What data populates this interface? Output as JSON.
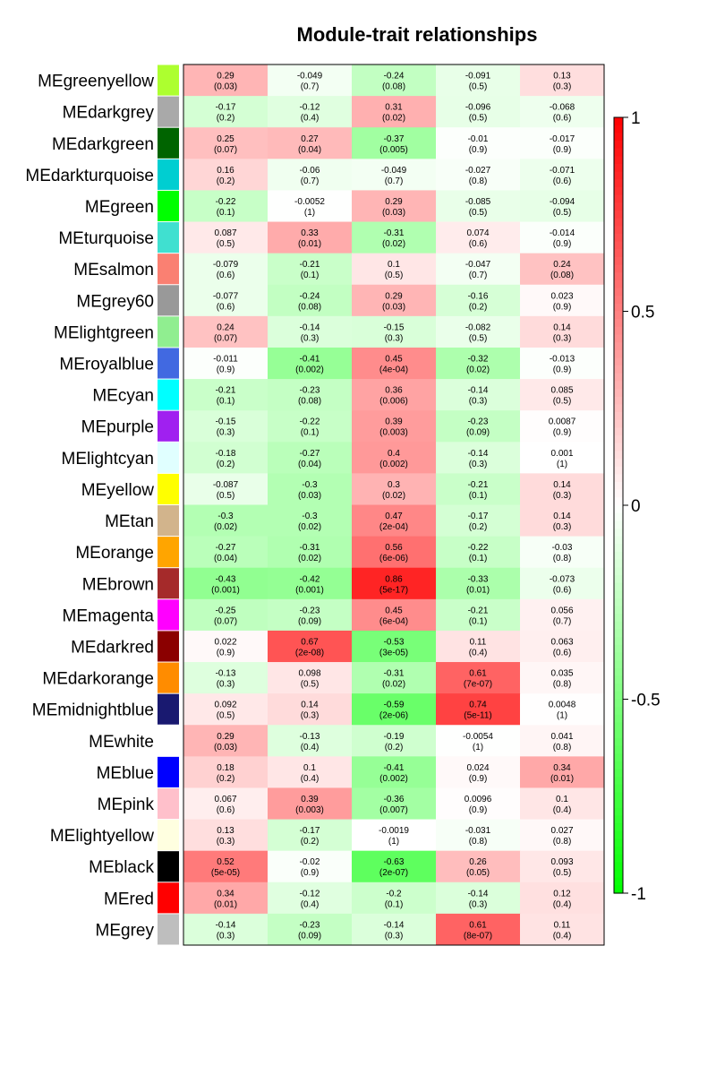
{
  "chart_data": {
    "type": "heatmap",
    "title": "Module-trait relationships",
    "xlabel": "",
    "ylabel": "",
    "rows": [
      {
        "label": "MEgreenyellow",
        "color": "#ADFF2F",
        "cells": [
          [
            "0.29",
            "(0.03)"
          ],
          [
            "-0.049",
            "(0.7)"
          ],
          [
            "-0.24",
            "(0.08)"
          ],
          [
            "-0.091",
            "(0.5)"
          ],
          [
            "0.13",
            "(0.3)"
          ]
        ]
      },
      {
        "label": "MEdarkgrey",
        "color": "#A9A9A9",
        "cells": [
          [
            "-0.17",
            "(0.2)"
          ],
          [
            "-0.12",
            "(0.4)"
          ],
          [
            "0.31",
            "(0.02)"
          ],
          [
            "-0.096",
            "(0.5)"
          ],
          [
            "-0.068",
            "(0.6)"
          ]
        ]
      },
      {
        "label": "MEdarkgreen",
        "color": "#006400",
        "cells": [
          [
            "0.25",
            "(0.07)"
          ],
          [
            "0.27",
            "(0.04)"
          ],
          [
            "-0.37",
            "(0.005)"
          ],
          [
            "-0.01",
            "(0.9)"
          ],
          [
            "-0.017",
            "(0.9)"
          ]
        ]
      },
      {
        "label": "MEdarkturquoise",
        "color": "#00CED1",
        "cells": [
          [
            "0.16",
            "(0.2)"
          ],
          [
            "-0.06",
            "(0.7)"
          ],
          [
            "-0.049",
            "(0.7)"
          ],
          [
            "-0.027",
            "(0.8)"
          ],
          [
            "-0.071",
            "(0.6)"
          ]
        ]
      },
      {
        "label": "MEgreen",
        "color": "#00FF00",
        "cells": [
          [
            "-0.22",
            "(0.1)"
          ],
          [
            "-0.0052",
            "(1)"
          ],
          [
            "0.29",
            "(0.03)"
          ],
          [
            "-0.085",
            "(0.5)"
          ],
          [
            "-0.094",
            "(0.5)"
          ]
        ]
      },
      {
        "label": "MEturquoise",
        "color": "#40E0D0",
        "cells": [
          [
            "0.087",
            "(0.5)"
          ],
          [
            "0.33",
            "(0.01)"
          ],
          [
            "-0.31",
            "(0.02)"
          ],
          [
            "0.074",
            "(0.6)"
          ],
          [
            "-0.014",
            "(0.9)"
          ]
        ]
      },
      {
        "label": "MEsalmon",
        "color": "#FA8072",
        "cells": [
          [
            "-0.079",
            "(0.6)"
          ],
          [
            "-0.21",
            "(0.1)"
          ],
          [
            "0.1",
            "(0.5)"
          ],
          [
            "-0.047",
            "(0.7)"
          ],
          [
            "0.24",
            "(0.08)"
          ]
        ]
      },
      {
        "label": "MEgrey60",
        "color": "#999999",
        "cells": [
          [
            "-0.077",
            "(0.6)"
          ],
          [
            "-0.24",
            "(0.08)"
          ],
          [
            "0.29",
            "(0.03)"
          ],
          [
            "-0.16",
            "(0.2)"
          ],
          [
            "0.023",
            "(0.9)"
          ]
        ]
      },
      {
        "label": "MElightgreen",
        "color": "#90EE90",
        "cells": [
          [
            "0.24",
            "(0.07)"
          ],
          [
            "-0.14",
            "(0.3)"
          ],
          [
            "-0.15",
            "(0.3)"
          ],
          [
            "-0.082",
            "(0.5)"
          ],
          [
            "0.14",
            "(0.3)"
          ]
        ]
      },
      {
        "label": "MEroyalblue",
        "color": "#4169E1",
        "cells": [
          [
            "-0.011",
            "(0.9)"
          ],
          [
            "-0.41",
            "(0.002)"
          ],
          [
            "0.45",
            "(4e-04)"
          ],
          [
            "-0.32",
            "(0.02)"
          ],
          [
            "-0.013",
            "(0.9)"
          ]
        ]
      },
      {
        "label": "MEcyan",
        "color": "#00FFFF",
        "cells": [
          [
            "-0.21",
            "(0.1)"
          ],
          [
            "-0.23",
            "(0.08)"
          ],
          [
            "0.36",
            "(0.006)"
          ],
          [
            "-0.14",
            "(0.3)"
          ],
          [
            "0.085",
            "(0.5)"
          ]
        ]
      },
      {
        "label": "MEpurple",
        "color": "#A020F0",
        "cells": [
          [
            "-0.15",
            "(0.3)"
          ],
          [
            "-0.22",
            "(0.1)"
          ],
          [
            "0.39",
            "(0.003)"
          ],
          [
            "-0.23",
            "(0.09)"
          ],
          [
            "0.0087",
            "(0.9)"
          ]
        ]
      },
      {
        "label": "MElightcyan",
        "color": "#E0FFFF",
        "cells": [
          [
            "-0.18",
            "(0.2)"
          ],
          [
            "-0.27",
            "(0.04)"
          ],
          [
            "0.4",
            "(0.002)"
          ],
          [
            "-0.14",
            "(0.3)"
          ],
          [
            "0.001",
            "(1)"
          ]
        ]
      },
      {
        "label": "MEyellow",
        "color": "#FFFF00",
        "cells": [
          [
            "-0.087",
            "(0.5)"
          ],
          [
            "-0.3",
            "(0.03)"
          ],
          [
            "0.3",
            "(0.02)"
          ],
          [
            "-0.21",
            "(0.1)"
          ],
          [
            "0.14",
            "(0.3)"
          ]
        ]
      },
      {
        "label": "MEtan",
        "color": "#D2B48C",
        "cells": [
          [
            "-0.3",
            "(0.02)"
          ],
          [
            "-0.3",
            "(0.02)"
          ],
          [
            "0.47",
            "(2e-04)"
          ],
          [
            "-0.17",
            "(0.2)"
          ],
          [
            "0.14",
            "(0.3)"
          ]
        ]
      },
      {
        "label": "MEorange",
        "color": "#FFA500",
        "cells": [
          [
            "-0.27",
            "(0.04)"
          ],
          [
            "-0.31",
            "(0.02)"
          ],
          [
            "0.56",
            "(6e-06)"
          ],
          [
            "-0.22",
            "(0.1)"
          ],
          [
            "-0.03",
            "(0.8)"
          ]
        ]
      },
      {
        "label": "MEbrown",
        "color": "#A52A2A",
        "cells": [
          [
            "-0.43",
            "(0.001)"
          ],
          [
            "-0.42",
            "(0.001)"
          ],
          [
            "0.86",
            "(5e-17)"
          ],
          [
            "-0.33",
            "(0.01)"
          ],
          [
            "-0.073",
            "(0.6)"
          ]
        ]
      },
      {
        "label": "MEmagenta",
        "color": "#FF00FF",
        "cells": [
          [
            "-0.25",
            "(0.07)"
          ],
          [
            "-0.23",
            "(0.09)"
          ],
          [
            "0.45",
            "(6e-04)"
          ],
          [
            "-0.21",
            "(0.1)"
          ],
          [
            "0.056",
            "(0.7)"
          ]
        ]
      },
      {
        "label": "MEdarkred",
        "color": "#8B0000",
        "cells": [
          [
            "0.022",
            "(0.9)"
          ],
          [
            "0.67",
            "(2e-08)"
          ],
          [
            "-0.53",
            "(3e-05)"
          ],
          [
            "0.11",
            "(0.4)"
          ],
          [
            "0.063",
            "(0.6)"
          ]
        ]
      },
      {
        "label": "MEdarkorange",
        "color": "#FF8C00",
        "cells": [
          [
            "-0.13",
            "(0.3)"
          ],
          [
            "0.098",
            "(0.5)"
          ],
          [
            "-0.31",
            "(0.02)"
          ],
          [
            "0.61",
            "(7e-07)"
          ],
          [
            "0.035",
            "(0.8)"
          ]
        ]
      },
      {
        "label": "MEmidnightblue",
        "color": "#191970",
        "cells": [
          [
            "0.092",
            "(0.5)"
          ],
          [
            "0.14",
            "(0.3)"
          ],
          [
            "-0.59",
            "(2e-06)"
          ],
          [
            "0.74",
            "(5e-11)"
          ],
          [
            "0.0048",
            "(1)"
          ]
        ]
      },
      {
        "label": "MEwhite",
        "color": "#FFFFFF",
        "cells": [
          [
            "0.29",
            "(0.03)"
          ],
          [
            "-0.13",
            "(0.4)"
          ],
          [
            "-0.19",
            "(0.2)"
          ],
          [
            "-0.0054",
            "(1)"
          ],
          [
            "0.041",
            "(0.8)"
          ]
        ]
      },
      {
        "label": "MEblue",
        "color": "#0000FF",
        "cells": [
          [
            "0.18",
            "(0.2)"
          ],
          [
            "0.1",
            "(0.4)"
          ],
          [
            "-0.41",
            "(0.002)"
          ],
          [
            "0.024",
            "(0.9)"
          ],
          [
            "0.34",
            "(0.01)"
          ]
        ]
      },
      {
        "label": "MEpink",
        "color": "#FFC0CB",
        "cells": [
          [
            "0.067",
            "(0.6)"
          ],
          [
            "0.39",
            "(0.003)"
          ],
          [
            "-0.36",
            "(0.007)"
          ],
          [
            "0.0096",
            "(0.9)"
          ],
          [
            "0.1",
            "(0.4)"
          ]
        ]
      },
      {
        "label": "MElightyellow",
        "color": "#FFFFE0",
        "cells": [
          [
            "0.13",
            "(0.3)"
          ],
          [
            "-0.17",
            "(0.2)"
          ],
          [
            "-0.0019",
            "(1)"
          ],
          [
            "-0.031",
            "(0.8)"
          ],
          [
            "0.027",
            "(0.8)"
          ]
        ]
      },
      {
        "label": "MEblack",
        "color": "#000000",
        "cells": [
          [
            "0.52",
            "(5e-05)"
          ],
          [
            "-0.02",
            "(0.9)"
          ],
          [
            "-0.63",
            "(2e-07)"
          ],
          [
            "0.26",
            "(0.05)"
          ],
          [
            "0.093",
            "(0.5)"
          ]
        ]
      },
      {
        "label": "MEred",
        "color": "#FF0000",
        "cells": [
          [
            "0.34",
            "(0.01)"
          ],
          [
            "-0.12",
            "(0.4)"
          ],
          [
            "-0.2",
            "(0.1)"
          ],
          [
            "-0.14",
            "(0.3)"
          ],
          [
            "0.12",
            "(0.4)"
          ]
        ]
      },
      {
        "label": "MEgrey",
        "color": "#BEBEBE",
        "cells": [
          [
            "-0.14",
            "(0.3)"
          ],
          [
            "-0.23",
            "(0.09)"
          ],
          [
            "-0.14",
            "(0.3)"
          ],
          [
            "0.61",
            "(8e-07)"
          ],
          [
            "0.11",
            "(0.4)"
          ]
        ]
      }
    ],
    "color_scale": {
      "min": -1,
      "max": 1,
      "ticks": [
        "1",
        "0.5",
        "0",
        "-0.5",
        "-1"
      ],
      "tick_values": [
        1,
        0.5,
        0,
        -0.5,
        -1
      ],
      "low_color": "#00FF00",
      "mid_color": "#FFFFFF",
      "high_color": "#FF0000"
    }
  }
}
